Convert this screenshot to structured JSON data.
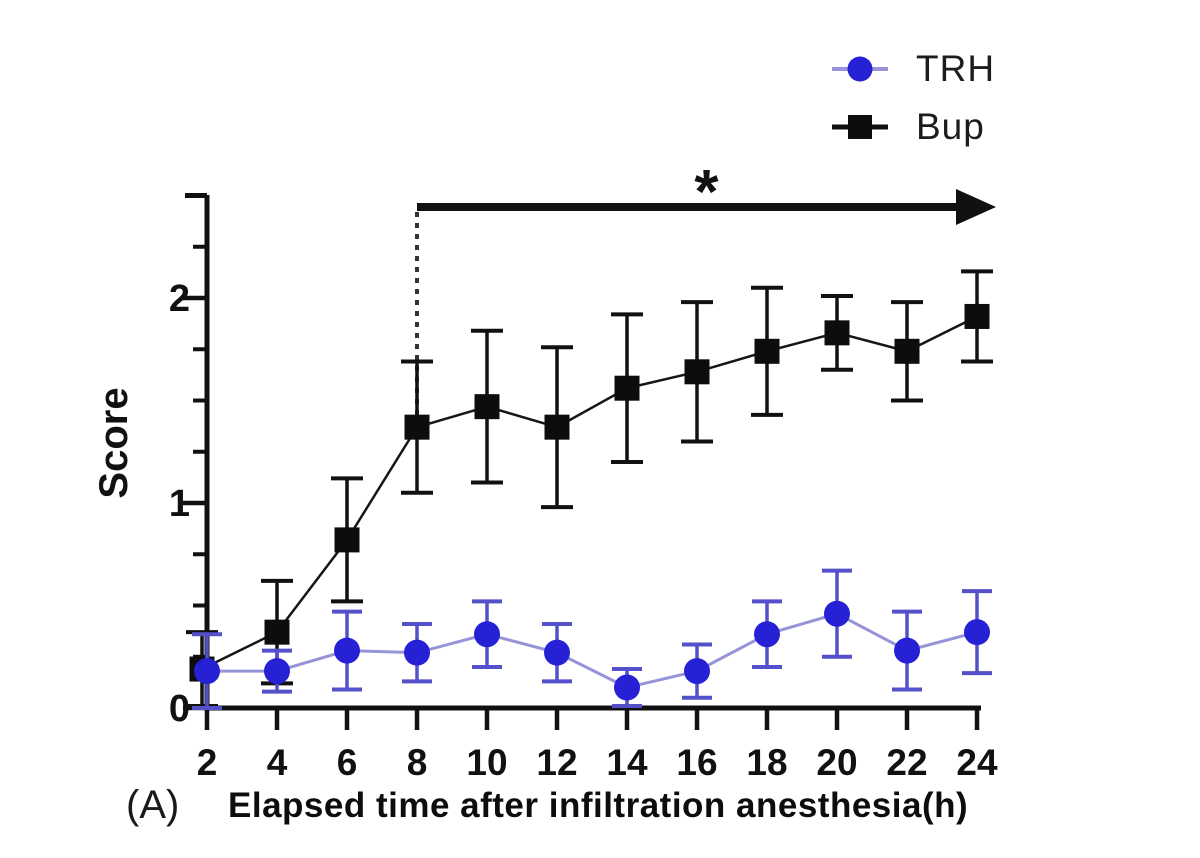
{
  "figure": {
    "panel_label": "(A)",
    "background": "#ffffff"
  },
  "legend": [
    {
      "label": "TRH",
      "marker": "circle",
      "marker_color": "#2721d6",
      "line_color": "#9693d8"
    },
    {
      "label": "Bup",
      "marker": "square",
      "marker_color": "#0d0d0d",
      "line_color": "#111111"
    }
  ],
  "colors": {
    "axis": "#111111",
    "annotation": "#111111",
    "dashed_guide": "#333333",
    "trh_marker": "#2721d6",
    "trh_line": "#9693d8",
    "trh_error": "#5450c9",
    "bup_marker": "#0d0d0d",
    "bup_line": "#161616",
    "bup_error": "#111111",
    "text": "#111111"
  },
  "chart_data": {
    "type": "line",
    "title": "",
    "xlabel": "Elapsed time after infiltration anesthesia(h)",
    "ylabel": "Score",
    "x": [
      2,
      4,
      6,
      8,
      10,
      12,
      14,
      16,
      18,
      20,
      22,
      24
    ],
    "x_tick_labels": [
      "2",
      "4",
      "6",
      "8",
      "10",
      "12",
      "14",
      "16",
      "18",
      "20",
      "22",
      "24"
    ],
    "y_ticks": [
      0,
      1,
      2
    ],
    "y_tick_labels": [
      "0",
      "1",
      "2"
    ],
    "y_minor_ticks": [
      0.25,
      0.5,
      0.75,
      1.25,
      1.5,
      1.75,
      2.25
    ],
    "y_end_tick": 2.5,
    "xlim": [
      2,
      24
    ],
    "ylim": [
      0,
      2.5
    ],
    "grid": false,
    "legend_position": "top-right",
    "error_bars": true,
    "series": [
      {
        "name": "TRH",
        "marker": "circle",
        "values": [
          0.18,
          0.18,
          0.28,
          0.27,
          0.36,
          0.27,
          0.1,
          0.18,
          0.36,
          0.46,
          0.28,
          0.37
        ],
        "errors": [
          0.18,
          0.1,
          0.19,
          0.14,
          0.16,
          0.14,
          0.09,
          0.13,
          0.16,
          0.21,
          0.19,
          0.2
        ]
      },
      {
        "name": "Bup",
        "marker": "square",
        "values": [
          0.19,
          0.37,
          0.82,
          1.37,
          1.47,
          1.37,
          1.56,
          1.64,
          1.74,
          1.83,
          1.74,
          1.91
        ],
        "errors": [
          0.18,
          0.25,
          0.3,
          0.32,
          0.37,
          0.39,
          0.36,
          0.34,
          0.31,
          0.18,
          0.24,
          0.22
        ]
      }
    ],
    "annotations": {
      "significance_symbol": "*",
      "significance_span_hours": [
        8,
        24
      ],
      "dashed_guide_at_hour": 8
    }
  }
}
